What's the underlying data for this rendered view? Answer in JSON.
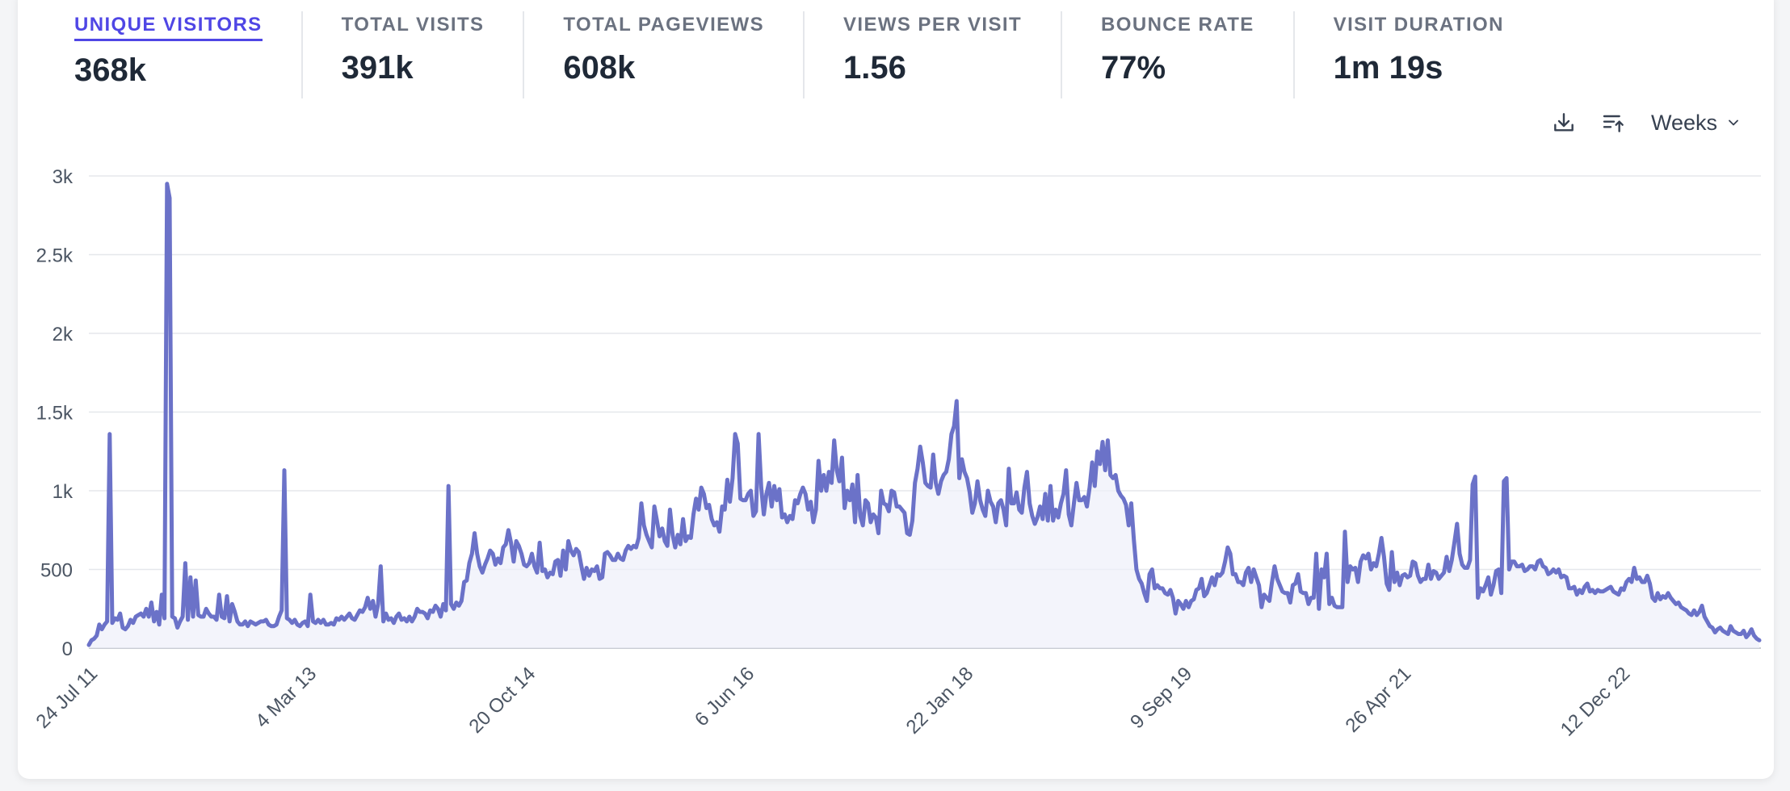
{
  "metrics": [
    {
      "label": "UNIQUE VISITORS",
      "value": "368k",
      "active": true
    },
    {
      "label": "TOTAL VISITS",
      "value": "391k",
      "active": false
    },
    {
      "label": "TOTAL PAGEVIEWS",
      "value": "608k",
      "active": false
    },
    {
      "label": "VIEWS PER VISIT",
      "value": "1.56",
      "active": false
    },
    {
      "label": "BOUNCE RATE",
      "value": "77%",
      "active": false
    },
    {
      "label": "VISIT DURATION",
      "value": "1m 19s",
      "active": false
    }
  ],
  "controls": {
    "download_icon": "download-icon",
    "import_icon": "import-icon",
    "interval_label": "Weeks",
    "chevron_icon": "chevron-down-icon"
  },
  "colors": {
    "line": "#6b72c8",
    "fill": "#eef0fa",
    "grid": "#e5e7eb",
    "accent": "#4f46e5"
  },
  "chart_data": {
    "type": "area",
    "title": "",
    "xlabel": "",
    "ylabel": "",
    "ylim": [
      0,
      3000
    ],
    "y_ticks": [
      0,
      500,
      1000,
      1500,
      2000,
      2500,
      3000
    ],
    "y_tick_labels": [
      "0",
      "500",
      "1k",
      "1.5k",
      "2k",
      "2.5k",
      "3k"
    ],
    "x_tick_labels": [
      "24 Jul 11",
      "4 Mar 13",
      "20 Oct 14",
      "6 Jun 16",
      "22 Jan 18",
      "9 Sep 19",
      "26 Apr 21",
      "12 Dec 22"
    ],
    "x_tick_week_index": [
      0,
      84,
      168,
      252,
      336,
      420,
      504,
      588
    ],
    "grid": true,
    "legend": "none",
    "series": [
      {
        "metric": "unique visitors per week",
        "values": [
          20,
          50,
          60,
          80,
          150,
          120,
          150,
          170,
          1360,
          160,
          190,
          180,
          220,
          130,
          120,
          140,
          180,
          160,
          200,
          210,
          220,
          200,
          250,
          200,
          290,
          170,
          230,
          150,
          340,
          190,
          2950,
          2860,
          200,
          190,
          130,
          170,
          200,
          540,
          180,
          450,
          200,
          430,
          210,
          200,
          200,
          250,
          220,
          200,
          200,
          180,
          340,
          200,
          190,
          330,
          170,
          280,
          230,
          170,
          150,
          150,
          170,
          140,
          170,
          160,
          150,
          160,
          170,
          170,
          180,
          150,
          140,
          140,
          150,
          200,
          240,
          1130,
          190,
          180,
          160,
          180,
          150,
          140,
          160,
          170,
          140,
          340,
          170,
          160,
          180,
          160,
          180,
          150,
          150,
          160,
          150,
          190,
          180,
          200,
          180,
          200,
          220,
          190,
          180,
          210,
          240,
          230,
          260,
          320,
          250,
          300,
          200,
          280,
          520,
          170,
          220,
          180,
          190,
          160,
          200,
          220,
          180,
          190,
          170,
          200,
          170,
          200,
          250,
          230,
          230,
          220,
          190,
          240,
          230,
          270,
          250,
          200,
          280,
          240,
          1030,
          280,
          250,
          290,
          270,
          300,
          420,
          430,
          540,
          600,
          730,
          600,
          520,
          480,
          530,
          570,
          620,
          600,
          530,
          570,
          540,
          640,
          660,
          750,
          670,
          550,
          680,
          650,
          600,
          530,
          520,
          540,
          600,
          520,
          480,
          670,
          490,
          500,
          450,
          480,
          470,
          550,
          560,
          460,
          620,
          500,
          680,
          620,
          590,
          630,
          610,
          520,
          440,
          510,
          460,
          500,
          490,
          520,
          440,
          450,
          600,
          610,
          590,
          560,
          560,
          600,
          570,
          560,
          620,
          650,
          630,
          650,
          640,
          700,
          920,
          780,
          720,
          680,
          640,
          900,
          810,
          710,
          760,
          680,
          650,
          880,
          720,
          640,
          720,
          660,
          820,
          680,
          710,
          700,
          850,
          950,
          880,
          1020,
          980,
          890,
          910,
          820,
          780,
          800,
          740,
          900,
          880,
          1070,
          930,
          1080,
          1360,
          1300,
          950,
          940,
          940,
          980,
          1000,
          840,
          870,
          1360,
          1020,
          850,
          980,
          1050,
          900,
          1030,
          940,
          1010,
          830,
          850,
          800,
          840,
          820,
          940,
          920,
          980,
          1020,
          980,
          880,
          930,
          800,
          880,
          1190,
          1000,
          1100,
          1000,
          1120,
          1050,
          1320,
          1130,
          1060,
          1210,
          890,
          1000,
          940,
          1040,
          800,
          1100,
          840,
          780,
          940,
          920,
          800,
          850,
          830,
          730,
          1000,
          920,
          910,
          870,
          1000,
          990,
          900,
          900,
          880,
          860,
          730,
          720,
          810,
          1050,
          1140,
          1280,
          1180,
          1050,
          1030,
          1020,
          1230,
          1050,
          980,
          1060,
          1100,
          1120,
          1200,
          1360,
          1410,
          1570,
          1080,
          1200,
          1120,
          1080,
          990,
          860,
          920,
          1060,
          940,
          880,
          840,
          1000,
          930,
          900,
          800,
          920,
          940,
          880,
          780,
          1140,
          920,
          920,
          990,
          880,
          860,
          1020,
          1120,
          920,
          840,
          790,
          830,
          900,
          820,
          980,
          810,
          1030,
          810,
          880,
          830,
          920,
          980,
          1130,
          850,
          780,
          920,
          1050,
          940,
          940,
          960,
          900,
          1020,
          1180,
          1030,
          1250,
          1170,
          1310,
          1130,
          1320,
          1100,
          1080,
          1100,
          1000,
          970,
          950,
          910,
          780,
          920,
          690,
          500,
          440,
          410,
          350,
          300,
          470,
          500,
          380,
          400,
          380,
          380,
          350,
          340,
          370,
          320,
          220,
          300,
          280,
          250,
          300,
          260,
          300,
          310,
          370,
          380,
          440,
          330,
          350,
          400,
          450,
          400,
          470,
          460,
          480,
          550,
          640,
          600,
          470,
          470,
          420,
          420,
          400,
          480,
          510,
          420,
          500,
          450,
          400,
          260,
          340,
          320,
          300,
          420,
          520,
          440,
          400,
          360,
          350,
          350,
          290,
          400,
          410,
          470,
          360,
          350,
          350,
          280,
          320,
          320,
          600,
          250,
          500,
          450,
          600,
          280,
          320,
          270,
          260,
          260,
          260,
          740,
          420,
          520,
          500,
          510,
          420,
          550,
          590,
          570,
          600,
          500,
          540,
          520,
          600,
          700,
          580,
          410,
          370,
          610,
          420,
          480,
          400,
          460,
          470,
          450,
          460,
          550,
          540,
          460,
          420,
          440,
          440,
          530,
          440,
          490,
          480,
          440,
          460,
          480,
          580,
          490,
          560,
          670,
          790,
          600,
          530,
          510,
          510,
          560,
          1040,
          1090,
          320,
          380,
          360,
          400,
          450,
          340,
          400,
          490,
          500,
          350,
          1060,
          1080,
          500,
          550,
          550,
          520,
          520,
          530,
          490,
          500,
          520,
          520,
          500,
          550,
          560,
          520,
          510,
          470,
          480,
          500,
          480,
          500,
          450,
          460,
          450,
          380,
          380,
          390,
          340,
          370,
          350,
          390,
          410,
          360,
          370,
          350,
          370,
          360,
          360,
          370,
          380,
          390,
          360,
          350,
          340,
          380,
          370,
          420,
          440,
          420,
          510,
          440,
          450,
          420,
          420,
          460,
          410,
          320,
          300,
          350,
          310,
          330,
          320,
          350,
          320,
          300,
          280,
          290,
          260,
          250,
          240,
          220,
          210,
          240,
          210,
          230,
          270,
          200,
          170,
          140,
          130,
          100,
          120,
          130,
          110,
          100,
          90,
          140,
          110,
          100,
          90,
          90,
          110,
          70,
          90,
          120,
          80,
          60,
          50
        ]
      }
    ]
  }
}
